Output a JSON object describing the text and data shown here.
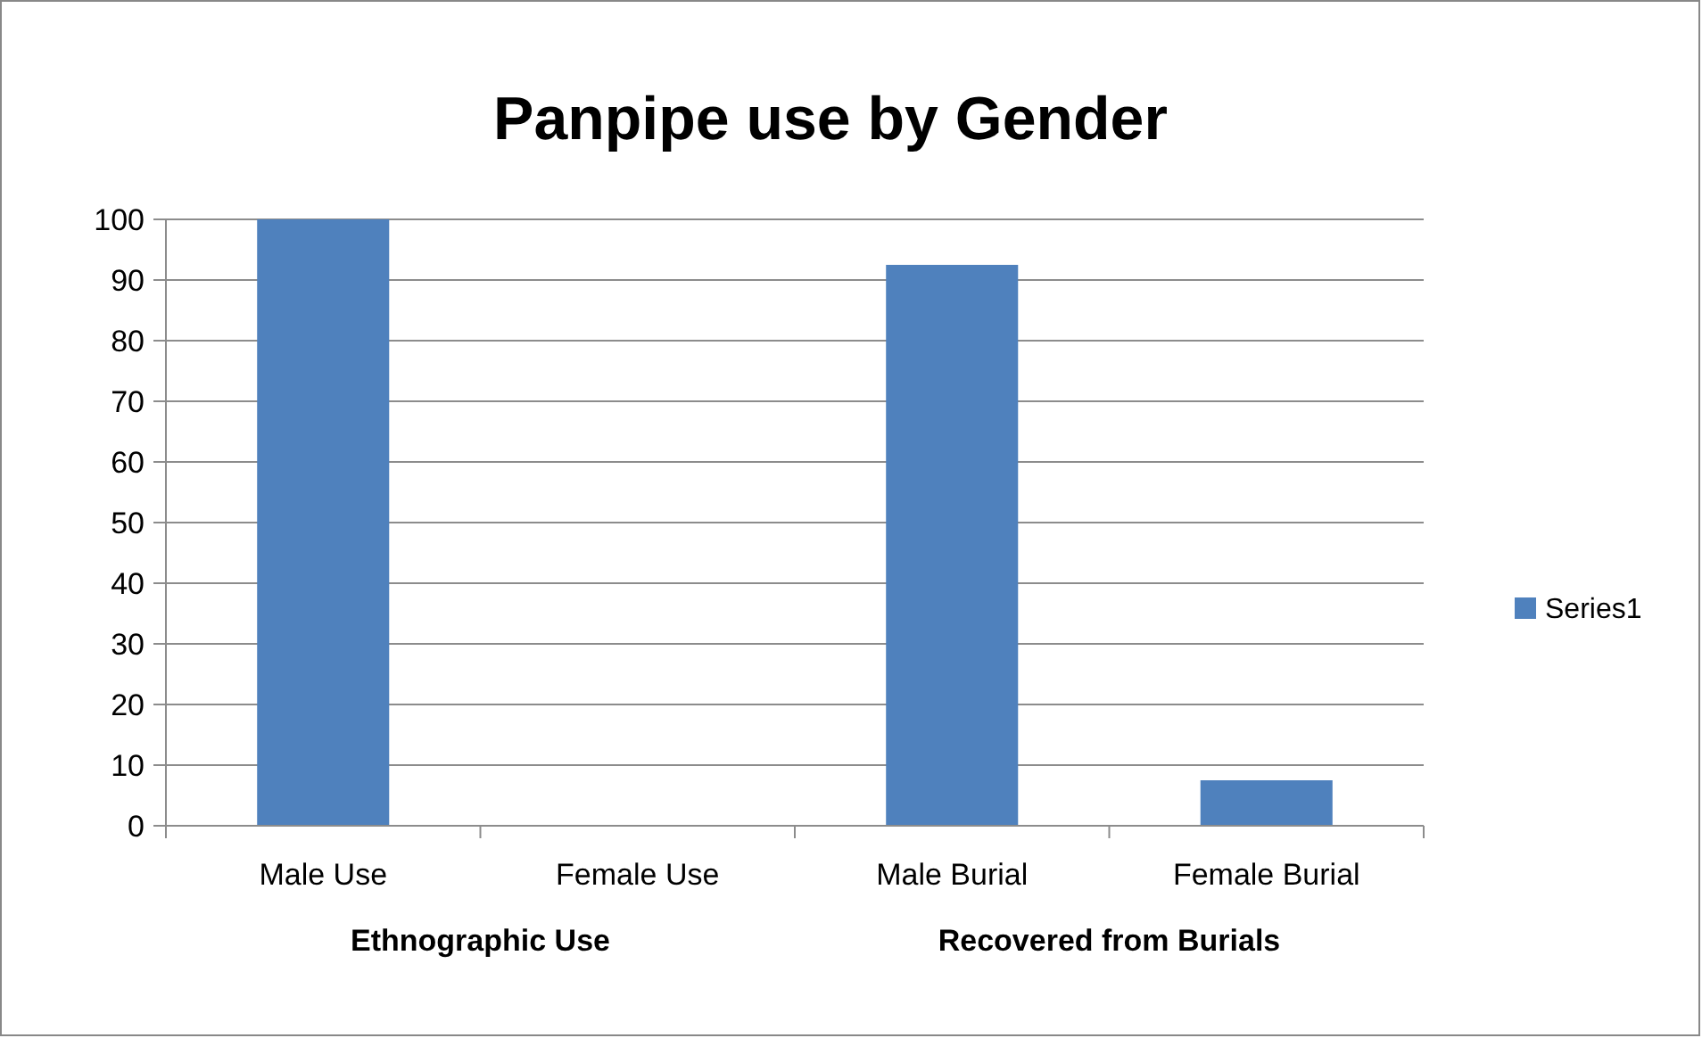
{
  "chart_data": {
    "type": "bar",
    "title": "Panpipe use by Gender",
    "categories": [
      "Male Use",
      "Female Use",
      "Male Burial",
      "Female Burial"
    ],
    "series": [
      {
        "name": "Series1",
        "color": "#4f81bd",
        "values": [
          100,
          0,
          92.5,
          7.5
        ]
      }
    ],
    "ylim": [
      0,
      100
    ],
    "yticks": [
      0,
      10,
      20,
      30,
      40,
      50,
      60,
      70,
      80,
      90,
      100
    ],
    "grid": "y",
    "legend": "right",
    "annotations": [
      "Ethnographic Use",
      "Recovered from Burials"
    ]
  }
}
